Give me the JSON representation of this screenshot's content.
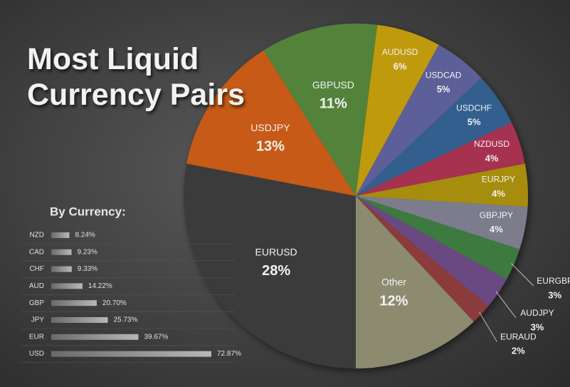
{
  "chart_data": [
    {
      "type": "pie",
      "title": "Most Liquid Currency Pairs",
      "categories": [
        "EURUSD",
        "USDJPY",
        "GBPUSD",
        "AUDUSD",
        "USDCAD",
        "USDCHF",
        "NZDUSD",
        "EURJPY",
        "GBPJPY",
        "EURGBP",
        "AUDJPY",
        "EURAUD",
        "Other"
      ],
      "values": [
        28,
        13,
        11,
        6,
        5,
        5,
        4,
        4,
        4,
        3,
        3,
        2,
        12
      ],
      "value_labels": [
        "28%",
        "13%",
        "11%",
        "6%",
        "5%",
        "5%",
        "4%",
        "4%",
        "4%",
        "3%",
        "3%",
        "2%",
        "12%"
      ],
      "colors": [
        "#3b3b3b",
        "#c65a12",
        "#53823a",
        "#c09a0a",
        "#5d5f98",
        "#335f8e",
        "#a6304f",
        "#a68d10",
        "#7b7c8c",
        "#3e7a40",
        "#6b4a82",
        "#8b3a3a",
        "#8c8b70"
      ]
    },
    {
      "type": "bar",
      "orientation": "horizontal",
      "title": "By Currency:",
      "categories": [
        "NZD",
        "CAD",
        "CHF",
        "AUD",
        "GBP",
        "JPY",
        "EUR",
        "USD"
      ],
      "values": [
        8.24,
        9.23,
        9.33,
        14.22,
        20.7,
        25.73,
        39.67,
        72.87
      ],
      "value_labels": [
        "8.24%",
        "9.23%",
        "9.33%",
        "14.22%",
        "20.70%",
        "25.73%",
        "39.67%",
        "72.87%"
      ],
      "xlim": [
        0,
        80
      ],
      "color": "#9a9a9a"
    }
  ]
}
